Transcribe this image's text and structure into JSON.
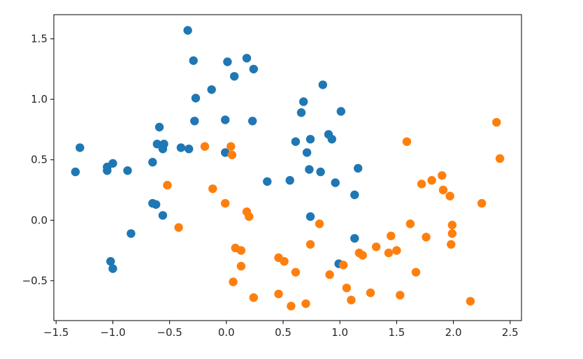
{
  "chart_data": {
    "type": "scatter",
    "title": "",
    "xlabel": "",
    "ylabel": "",
    "xlim": [
      -1.52,
      2.6
    ],
    "ylim": [
      -0.83,
      1.7
    ],
    "grid": false,
    "x_ticks": [
      -1.5,
      -1.0,
      -0.5,
      0.0,
      0.5,
      1.0,
      1.5,
      2.0,
      2.5
    ],
    "x_tick_labels": [
      "−1.5",
      "−1.0",
      "−0.5",
      "0.0",
      "0.5",
      "1.0",
      "1.5",
      "2.0",
      "2.5"
    ],
    "y_ticks": [
      -0.5,
      0.0,
      0.5,
      1.0,
      1.5
    ],
    "y_tick_labels": [
      "−0.5",
      "0.0",
      "0.5",
      "1.0",
      "1.5"
    ],
    "series": [
      {
        "color": "#1f77b4",
        "points": [
          [
            -1.33,
            0.4
          ],
          [
            -1.29,
            0.6
          ],
          [
            -1.05,
            0.41
          ],
          [
            -1.05,
            0.44
          ],
          [
            -1.0,
            0.47
          ],
          [
            -0.87,
            0.41
          ],
          [
            -0.84,
            -0.11
          ],
          [
            -1.02,
            -0.34
          ],
          [
            -1.0,
            -0.4
          ],
          [
            -0.65,
            0.48
          ],
          [
            -0.65,
            0.14
          ],
          [
            -0.62,
            0.13
          ],
          [
            -0.61,
            0.63
          ],
          [
            -0.59,
            0.77
          ],
          [
            -0.56,
            0.59
          ],
          [
            -0.55,
            0.63
          ],
          [
            -0.56,
            0.04
          ],
          [
            -0.4,
            0.6
          ],
          [
            -0.33,
            0.59
          ],
          [
            -0.34,
            1.57
          ],
          [
            -0.29,
            1.32
          ],
          [
            -0.27,
            1.01
          ],
          [
            -0.28,
            0.82
          ],
          [
            -0.13,
            1.08
          ],
          [
            -0.01,
            0.83
          ],
          [
            -0.01,
            0.56
          ],
          [
            0.01,
            1.31
          ],
          [
            0.07,
            1.19
          ],
          [
            0.18,
            1.34
          ],
          [
            0.24,
            1.25
          ],
          [
            0.23,
            0.82
          ],
          [
            0.36,
            0.32
          ],
          [
            0.56,
            0.33
          ],
          [
            0.61,
            0.65
          ],
          [
            0.66,
            0.89
          ],
          [
            0.68,
            0.98
          ],
          [
            0.71,
            0.56
          ],
          [
            0.73,
            0.42
          ],
          [
            0.74,
            0.67
          ],
          [
            0.74,
            0.03
          ],
          [
            0.83,
            0.4
          ],
          [
            0.85,
            1.12
          ],
          [
            0.9,
            0.71
          ],
          [
            0.93,
            0.67
          ],
          [
            0.96,
            0.31
          ],
          [
            1.01,
            0.9
          ],
          [
            0.99,
            -0.36
          ],
          [
            1.13,
            0.21
          ],
          [
            1.16,
            0.43
          ],
          [
            1.13,
            -0.15
          ]
        ]
      },
      {
        "color": "#ff7f0e",
        "points": [
          [
            -0.52,
            0.29
          ],
          [
            -0.42,
            -0.06
          ],
          [
            -0.19,
            0.61
          ],
          [
            -0.12,
            0.26
          ],
          [
            -0.01,
            0.14
          ],
          [
            0.04,
            0.61
          ],
          [
            0.05,
            0.54
          ],
          [
            0.06,
            -0.51
          ],
          [
            0.08,
            -0.23
          ],
          [
            0.13,
            -0.25
          ],
          [
            0.13,
            -0.38
          ],
          [
            0.18,
            0.07
          ],
          [
            0.2,
            0.03
          ],
          [
            0.24,
            -0.64
          ],
          [
            0.46,
            -0.31
          ],
          [
            0.46,
            -0.61
          ],
          [
            0.51,
            -0.34
          ],
          [
            0.57,
            -0.71
          ],
          [
            0.61,
            -0.43
          ],
          [
            0.7,
            -0.69
          ],
          [
            0.74,
            -0.2
          ],
          [
            0.82,
            -0.03
          ],
          [
            0.91,
            -0.45
          ],
          [
            1.03,
            -0.37
          ],
          [
            1.06,
            -0.56
          ],
          [
            1.1,
            -0.66
          ],
          [
            1.17,
            -0.27
          ],
          [
            1.2,
            -0.29
          ],
          [
            1.27,
            -0.6
          ],
          [
            1.32,
            -0.22
          ],
          [
            1.43,
            -0.27
          ],
          [
            1.45,
            -0.13
          ],
          [
            1.5,
            -0.25
          ],
          [
            1.53,
            -0.62
          ],
          [
            1.59,
            0.65
          ],
          [
            1.62,
            -0.03
          ],
          [
            1.67,
            -0.43
          ],
          [
            1.72,
            0.3
          ],
          [
            1.76,
            -0.14
          ],
          [
            1.81,
            0.33
          ],
          [
            1.9,
            0.37
          ],
          [
            1.91,
            0.25
          ],
          [
            1.97,
            0.2
          ],
          [
            1.98,
            -0.2
          ],
          [
            1.99,
            -0.04
          ],
          [
            1.99,
            -0.11
          ],
          [
            2.15,
            -0.67
          ],
          [
            2.25,
            0.14
          ],
          [
            2.38,
            0.81
          ],
          [
            2.41,
            0.51
          ]
        ]
      }
    ]
  }
}
